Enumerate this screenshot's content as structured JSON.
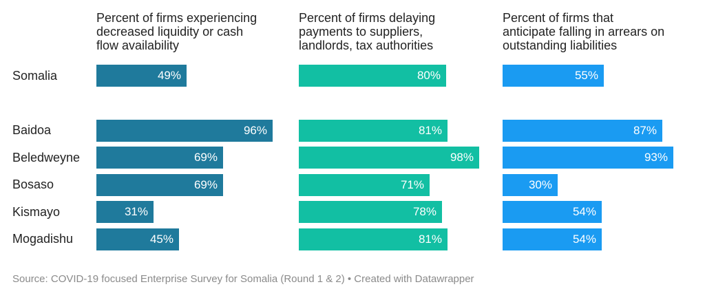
{
  "chart_data": {
    "type": "bar",
    "orientation": "horizontal",
    "categories": [
      "Somalia",
      "Baidoa",
      "Beledweyne",
      "Bosaso",
      "Kismayo",
      "Mogadishu"
    ],
    "series": [
      {
        "name": "Percent of firms experiencing decreased liquidity or cash flow availability",
        "values": [
          49,
          96,
          69,
          69,
          31,
          45
        ],
        "labels": [
          "49%",
          "96%",
          "69%",
          "69%",
          "31%",
          "45%"
        ],
        "color": "#1f7a9c"
      },
      {
        "name": "Percent of firms delaying payments to suppliers, landlords, tax authorities",
        "values": [
          80,
          81,
          98,
          71,
          78,
          81
        ],
        "labels": [
          "80%",
          "81%",
          "98%",
          "71%",
          "78%",
          "81%"
        ],
        "color": "#12bfa3"
      },
      {
        "name": "Percent of firms that anticipate falling in arrears on outstanding liabilities",
        "values": [
          55,
          87,
          93,
          30,
          54,
          54
        ],
        "labels": [
          "55%",
          "87%",
          "93%",
          "30%",
          "54%",
          "54%"
        ],
        "color": "#1a9bf2"
      }
    ],
    "titles": [
      [
        "Percent of firms experiencing",
        "decreased liquidity or cash",
        "flow availability"
      ],
      [
        "Percent of firms delaying",
        "payments to suppliers,",
        "landlords, tax authorities"
      ],
      [
        "Percent of firms that",
        "anticipate falling in arrears on",
        "outstanding liabilities"
      ]
    ],
    "xlim": [
      0,
      100
    ],
    "source": "Source: COVID-19 focused Enterprise Survey for Somalia (Round 1 & 2) • Created with Datawrapper"
  }
}
